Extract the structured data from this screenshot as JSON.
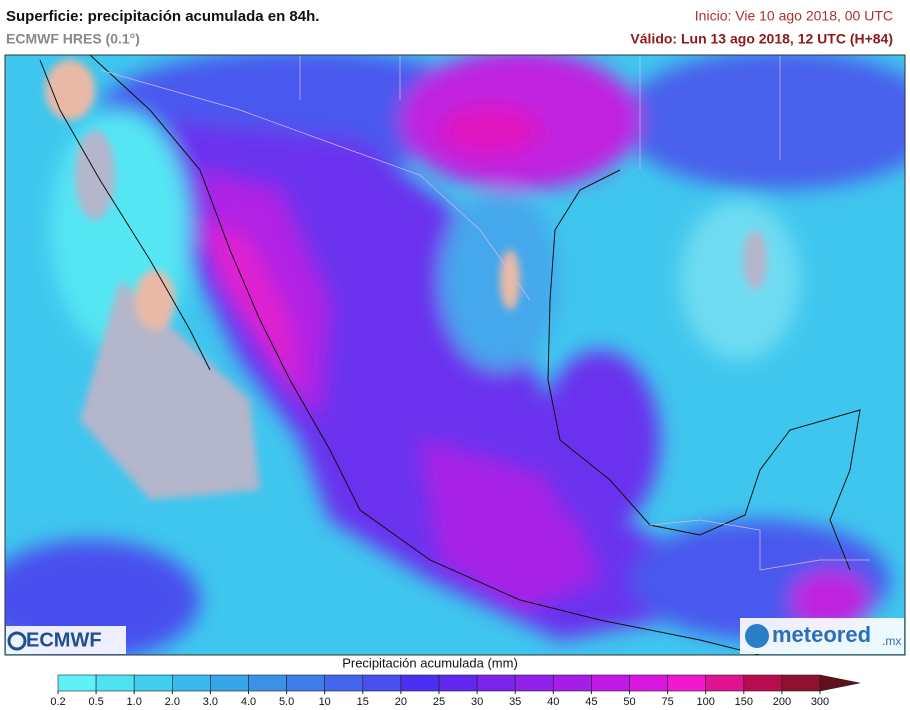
{
  "header": {
    "title": "Superficie: precipitación acumulada en 84h.",
    "model": "ECMWF HRES (0.1°)",
    "init": "Inicio: Vie 10 ago 2018, 00 UTC",
    "valid": "Válido: Lun 13 ago 2018, 12 UTC (H+84)"
  },
  "legend": {
    "title": "Precipitación acumulada (mm)",
    "ticks": [
      0.2,
      0.5,
      {
        "value": 1,
        "label": "1.0"
      },
      {
        "value": 2,
        "label": "2.0"
      },
      {
        "value": 3,
        "label": "3.0"
      },
      {
        "value": 4,
        "label": "4.0"
      },
      {
        "value": 5,
        "label": "5.0"
      },
      10,
      15,
      20,
      25,
      30,
      35,
      40,
      45,
      50,
      75,
      100,
      150,
      200,
      300
    ],
    "colors": [
      "#5ef2f6",
      "#4fe2f3",
      "#40cff0",
      "#39baec",
      "#37a5e9",
      "#3a91e8",
      "#3e7ce9",
      "#4366ec",
      "#4850f0",
      "#4a30f0",
      "#6028ee",
      "#7a24ec",
      "#9020ea",
      "#a81ce8",
      "#c018e6",
      "#d818e0",
      "#f018d0",
      "#e01490",
      "#b80c50",
      "#901030",
      "#601018"
    ]
  },
  "logos": {
    "left": "ECMWF",
    "right": "meteored",
    "right_suffix": ".mx"
  }
}
